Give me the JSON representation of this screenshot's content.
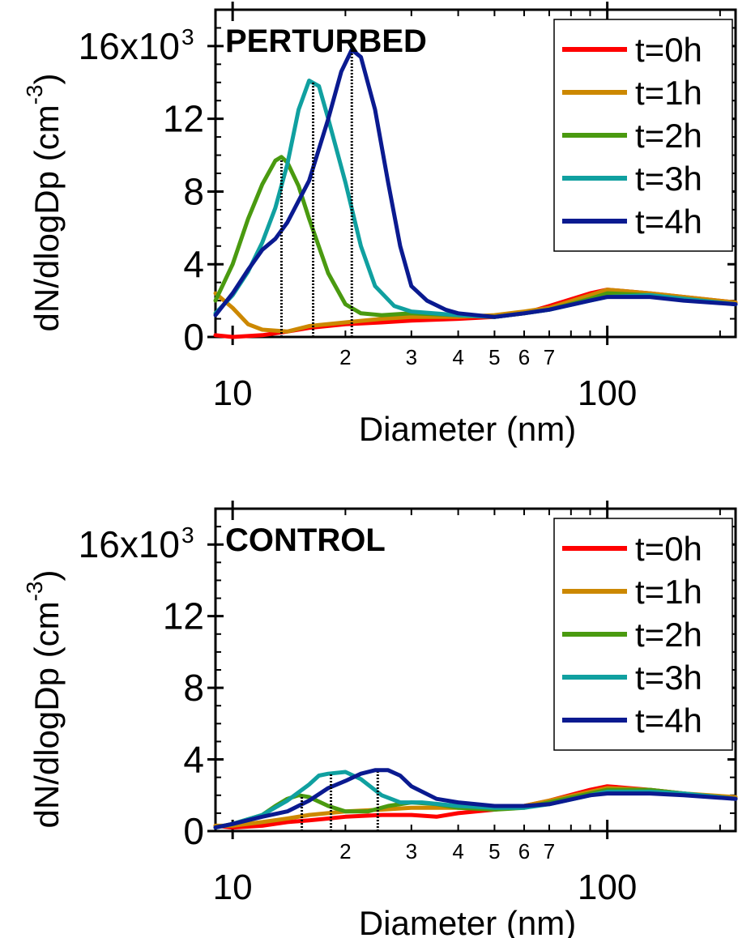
{
  "chart_data": [
    {
      "type": "line",
      "panel_label": "PERTURBED",
      "xlabel": "Diameter (nm)",
      "ylabel": "dN/dlogDp (cm",
      "ylabel_sup": "-3",
      "ylabel_close": ")",
      "xscale": "log",
      "xlim": [
        9,
        220
      ],
      "ylim": [
        0,
        18000
      ],
      "y_ticks": [
        0,
        4,
        8,
        12,
        16
      ],
      "y_tick_labels": [
        "0",
        "4",
        "8",
        "12",
        "16x10"
      ],
      "y_top_sup": "3",
      "x_major_ticks": [
        {
          "value": 10,
          "label": "10"
        },
        {
          "value": 100,
          "label": "100"
        }
      ],
      "x_minor_ticks": [
        {
          "value": 20,
          "label": "2"
        },
        {
          "value": 30,
          "label": "3"
        },
        {
          "value": 40,
          "label": "4"
        },
        {
          "value": 50,
          "label": "5"
        },
        {
          "value": 60,
          "label": "6"
        },
        {
          "value": 70,
          "label": "7"
        }
      ],
      "legend_position": "top-right",
      "peak_markers": [
        {
          "x": 13.5,
          "y": 9800
        },
        {
          "x": 16.4,
          "y": 14000
        },
        {
          "x": 20.8,
          "y": 15800
        }
      ],
      "series": [
        {
          "name": "t=0h",
          "color": "#ff0000",
          "points": [
            [
              9,
              100
            ],
            [
              10,
              0
            ],
            [
              12,
              100
            ],
            [
              14,
              300
            ],
            [
              16,
              500
            ],
            [
              20,
              700
            ],
            [
              25,
              800
            ],
            [
              30,
              900
            ],
            [
              40,
              1000
            ],
            [
              50,
              1100
            ],
            [
              60,
              1300
            ],
            [
              70,
              1700
            ],
            [
              90,
              2400
            ],
            [
              100,
              2600
            ],
            [
              130,
              2400
            ],
            [
              160,
              2200
            ],
            [
              220,
              1900
            ]
          ]
        },
        {
          "name": "t=1h",
          "color": "#cc8800",
          "points": [
            [
              9,
              2400
            ],
            [
              10,
              1600
            ],
            [
              11,
              700
            ],
            [
              12,
              400
            ],
            [
              14,
              300
            ],
            [
              16,
              600
            ],
            [
              20,
              800
            ],
            [
              25,
              1000
            ],
            [
              30,
              1100
            ],
            [
              40,
              1100
            ],
            [
              50,
              1200
            ],
            [
              60,
              1400
            ],
            [
              70,
              1600
            ],
            [
              90,
              2300
            ],
            [
              100,
              2600
            ],
            [
              130,
              2400
            ],
            [
              160,
              2200
            ],
            [
              220,
              1900
            ]
          ]
        },
        {
          "name": "t=2h",
          "color": "#4a9a10",
          "points": [
            [
              9,
              2000
            ],
            [
              10,
              4000
            ],
            [
              11,
              6500
            ],
            [
              12,
              8400
            ],
            [
              13,
              9700
            ],
            [
              13.5,
              9900
            ],
            [
              14,
              9600
            ],
            [
              15,
              8300
            ],
            [
              16,
              6500
            ],
            [
              18,
              3500
            ],
            [
              20,
              1800
            ],
            [
              22,
              1300
            ],
            [
              25,
              1200
            ],
            [
              30,
              1300
            ],
            [
              40,
              1200
            ],
            [
              50,
              1100
            ],
            [
              60,
              1300
            ],
            [
              70,
              1500
            ],
            [
              90,
              2100
            ],
            [
              100,
              2400
            ],
            [
              130,
              2300
            ],
            [
              160,
              2100
            ],
            [
              220,
              1800
            ]
          ]
        },
        {
          "name": "t=3h",
          "color": "#10a0a0",
          "points": [
            [
              9,
              1300
            ],
            [
              10,
              2300
            ],
            [
              11,
              3600
            ],
            [
              12,
              5200
            ],
            [
              13,
              7100
            ],
            [
              14,
              9500
            ],
            [
              15,
              12500
            ],
            [
              16,
              14100
            ],
            [
              17,
              13800
            ],
            [
              18,
              12000
            ],
            [
              20,
              8500
            ],
            [
              22,
              5000
            ],
            [
              24,
              2800
            ],
            [
              27,
              1700
            ],
            [
              30,
              1400
            ],
            [
              40,
              1200
            ],
            [
              50,
              1100
            ],
            [
              60,
              1300
            ],
            [
              70,
              1500
            ],
            [
              90,
              2000
            ],
            [
              100,
              2200
            ],
            [
              130,
              2300
            ],
            [
              160,
              2100
            ],
            [
              220,
              1800
            ]
          ]
        },
        {
          "name": "t=4h",
          "color": "#0a1a90",
          "points": [
            [
              9,
              1200
            ],
            [
              10,
              2400
            ],
            [
              11,
              3700
            ],
            [
              12,
              4800
            ],
            [
              13,
              5400
            ],
            [
              14,
              6300
            ],
            [
              16,
              8600
            ],
            [
              18,
              12000
            ],
            [
              19.5,
              14600
            ],
            [
              20.8,
              15800
            ],
            [
              22,
              15400
            ],
            [
              24,
              12500
            ],
            [
              26,
              8500
            ],
            [
              28,
              5000
            ],
            [
              30,
              2800
            ],
            [
              33,
              2000
            ],
            [
              37,
              1500
            ],
            [
              40,
              1300
            ],
            [
              50,
              1100
            ],
            [
              60,
              1300
            ],
            [
              70,
              1500
            ],
            [
              90,
              2000
            ],
            [
              100,
              2200
            ],
            [
              130,
              2200
            ],
            [
              160,
              2000
            ],
            [
              220,
              1800
            ]
          ]
        }
      ]
    },
    {
      "type": "line",
      "panel_label": "CONTROL",
      "xlabel": "Diameter (nm)",
      "ylabel": "dN/dlogDp (cm",
      "ylabel_sup": "-3",
      "ylabel_close": ")",
      "xscale": "log",
      "xlim": [
        9,
        220
      ],
      "ylim": [
        0,
        18000
      ],
      "y_ticks": [
        0,
        4,
        8,
        12,
        16
      ],
      "y_tick_labels": [
        "0",
        "4",
        "8",
        "12",
        "16x10"
      ],
      "y_top_sup": "3",
      "x_major_ticks": [
        {
          "value": 10,
          "label": "10"
        },
        {
          "value": 100,
          "label": "100"
        }
      ],
      "x_minor_ticks": [
        {
          "value": 20,
          "label": "2"
        },
        {
          "value": 30,
          "label": "3"
        },
        {
          "value": 40,
          "label": "4"
        },
        {
          "value": 50,
          "label": "5"
        },
        {
          "value": 60,
          "label": "6"
        },
        {
          "value": 70,
          "label": "7"
        }
      ],
      "legend_position": "top-right",
      "peak_markers": [
        {
          "x": 15.3,
          "y": 2000
        },
        {
          "x": 18.3,
          "y": 3200
        },
        {
          "x": 24.4,
          "y": 3300
        }
      ],
      "series": [
        {
          "name": "t=0h",
          "color": "#ff0000",
          "points": [
            [
              9,
              300
            ],
            [
              10,
              200
            ],
            [
              12,
              300
            ],
            [
              14,
              500
            ],
            [
              16,
              600
            ],
            [
              18,
              700
            ],
            [
              20,
              800
            ],
            [
              25,
              900
            ],
            [
              30,
              900
            ],
            [
              35,
              800
            ],
            [
              40,
              1000
            ],
            [
              50,
              1200
            ],
            [
              60,
              1400
            ],
            [
              70,
              1700
            ],
            [
              90,
              2300
            ],
            [
              100,
              2500
            ],
            [
              130,
              2300
            ],
            [
              160,
              2100
            ],
            [
              220,
              1800
            ]
          ]
        },
        {
          "name": "t=1h",
          "color": "#cc8800",
          "points": [
            [
              9,
              300
            ],
            [
              10,
              300
            ],
            [
              12,
              500
            ],
            [
              14,
              700
            ],
            [
              16,
              900
            ],
            [
              20,
              1100
            ],
            [
              25,
              1200
            ],
            [
              30,
              1300
            ],
            [
              40,
              1300
            ],
            [
              50,
              1300
            ],
            [
              60,
              1400
            ],
            [
              70,
              1700
            ],
            [
              90,
              2200
            ],
            [
              100,
              2400
            ],
            [
              130,
              2300
            ],
            [
              160,
              2100
            ],
            [
              220,
              1900
            ]
          ]
        },
        {
          "name": "t=2h",
          "color": "#4a9a10",
          "points": [
            [
              9,
              200
            ],
            [
              10,
              400
            ],
            [
              12,
              900
            ],
            [
              13,
              1400
            ],
            [
              14,
              1800
            ],
            [
              15,
              2000
            ],
            [
              16,
              1900
            ],
            [
              18,
              1400
            ],
            [
              20,
              1100
            ],
            [
              23,
              1100
            ],
            [
              26,
              1400
            ],
            [
              30,
              1600
            ],
            [
              35,
              1500
            ],
            [
              40,
              1300
            ],
            [
              50,
              1200
            ],
            [
              60,
              1300
            ],
            [
              70,
              1600
            ],
            [
              90,
              2100
            ],
            [
              100,
              2300
            ],
            [
              130,
              2300
            ],
            [
              160,
              2100
            ],
            [
              220,
              1800
            ]
          ]
        },
        {
          "name": "t=3h",
          "color": "#10a0a0",
          "points": [
            [
              9,
              200
            ],
            [
              10,
              400
            ],
            [
              12,
              900
            ],
            [
              14,
              1700
            ],
            [
              16,
              2600
            ],
            [
              17,
              3100
            ],
            [
              18,
              3200
            ],
            [
              20,
              3300
            ],
            [
              22,
              2900
            ],
            [
              25,
              2000
            ],
            [
              28,
              1600
            ],
            [
              32,
              1600
            ],
            [
              40,
              1400
            ],
            [
              50,
              1300
            ],
            [
              60,
              1300
            ],
            [
              70,
              1500
            ],
            [
              90,
              2000
            ],
            [
              100,
              2200
            ],
            [
              130,
              2200
            ],
            [
              160,
              2100
            ],
            [
              220,
              1800
            ]
          ]
        },
        {
          "name": "t=4h",
          "color": "#0a1a90",
          "points": [
            [
              9,
              200
            ],
            [
              10,
              400
            ],
            [
              12,
              800
            ],
            [
              14,
              1100
            ],
            [
              16,
              1700
            ],
            [
              18,
              2400
            ],
            [
              20,
              2800
            ],
            [
              22,
              3200
            ],
            [
              24,
              3400
            ],
            [
              26,
              3400
            ],
            [
              28,
              3100
            ],
            [
              30,
              2500
            ],
            [
              35,
              1800
            ],
            [
              40,
              1600
            ],
            [
              50,
              1400
            ],
            [
              60,
              1400
            ],
            [
              70,
              1500
            ],
            [
              90,
              2000
            ],
            [
              100,
              2100
            ],
            [
              130,
              2100
            ],
            [
              160,
              2000
            ],
            [
              220,
              1800
            ]
          ]
        }
      ]
    }
  ]
}
